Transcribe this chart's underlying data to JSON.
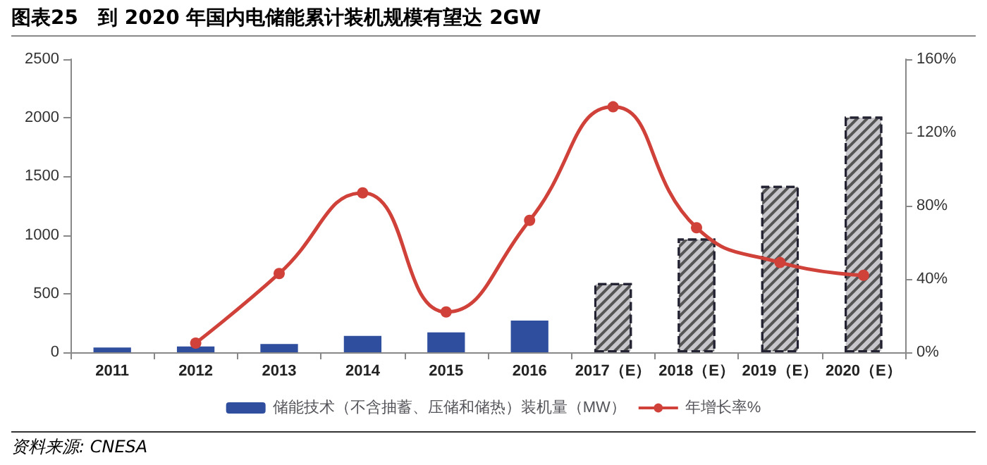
{
  "chart_data": {
    "type": "bar",
    "title": "图表25　到 2020 年国内电储能累计装机规模有望达 2GW",
    "categories": [
      "2011",
      "2012",
      "2013",
      "2014",
      "2015",
      "2016",
      "2017（E）",
      "2018（E）",
      "2019（E）",
      "2020（E）"
    ],
    "series": [
      {
        "name": "储能技术（不含抽蓄、压储和储热）装机量（MW）",
        "color": "#2f4f9e",
        "colors": [
          "#2f4f9e",
          "#2f4f9e",
          "#2f4f9e",
          "#2f4f9e",
          "#2f4f9e",
          "#2f4f9e",
          "#c8c8cc",
          "#c8c8cc",
          "#c8c8cc",
          "#c8c8cc"
        ],
        "values": [
          40,
          50,
          70,
          140,
          170,
          270,
          590,
          970,
          1420,
          2010
        ]
      },
      {
        "name": "年增长率%",
        "type": "line",
        "axis": "y2",
        "color": "#d0413a",
        "marker": "circle",
        "values": [
          null,
          5,
          43,
          87,
          22,
          72,
          134,
          68,
          49,
          42
        ]
      }
    ],
    "ylim": [
      0,
      2500
    ],
    "yticks": [
      0,
      500,
      1000,
      1500,
      2000,
      2500
    ],
    "y2lim": [
      0,
      160
    ],
    "y2ticks": [
      {
        "value": 0,
        "label": "0%"
      },
      {
        "value": 40,
        "label": "40%"
      },
      {
        "value": 80,
        "label": "80%"
      },
      {
        "value": 120,
        "label": "120%"
      },
      {
        "value": 160,
        "label": "160%"
      }
    ],
    "grid": false,
    "legend": "bottom",
    "annotations": [
      "资料来源: CNESA"
    ]
  }
}
